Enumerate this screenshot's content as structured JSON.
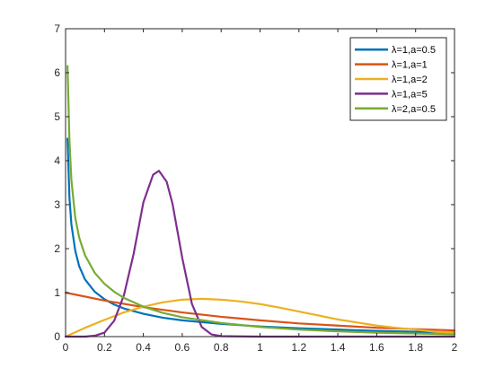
{
  "chart_data": {
    "type": "line",
    "title": "",
    "xlabel": "",
    "ylabel": "",
    "xlim": [
      0,
      2
    ],
    "ylim": [
      0,
      7
    ],
    "x_ticks": [
      "0",
      "0.2",
      "0.4",
      "0.6",
      "0.8",
      "1",
      "1.2",
      "1.4",
      "1.6",
      "1.8",
      "2"
    ],
    "x_tick_values": [
      0,
      0.2,
      0.4,
      0.6,
      0.8,
      1.0,
      1.2,
      1.4,
      1.6,
      1.8,
      2.0
    ],
    "y_ticks": [
      "0",
      "1",
      "2",
      "3",
      "4",
      "5",
      "6",
      "7"
    ],
    "y_tick_values": [
      0,
      1,
      2,
      3,
      4,
      5,
      6,
      7
    ],
    "grid": false,
    "legend_position": "top-right",
    "series": [
      {
        "name": "λ=1,a=0.5",
        "color": "#0072BD",
        "x": [
          0.01,
          0.02,
          0.03,
          0.05,
          0.07,
          0.1,
          0.15,
          0.2,
          0.25,
          0.3,
          0.4,
          0.5,
          0.6,
          0.8,
          1.0,
          1.2,
          1.4,
          1.6,
          1.8,
          2.0
        ],
        "y": [
          4.5,
          3.15,
          2.55,
          1.95,
          1.6,
          1.3,
          1.02,
          0.85,
          0.73,
          0.64,
          0.52,
          0.43,
          0.37,
          0.29,
          0.23,
          0.19,
          0.16,
          0.13,
          0.11,
          0.09
        ]
      },
      {
        "name": "λ=1,a=1",
        "color": "#D95319",
        "x": [
          0.0,
          0.2,
          0.4,
          0.6,
          0.8,
          1.0,
          1.2,
          1.4,
          1.6,
          1.8,
          2.0
        ],
        "y": [
          1.0,
          0.82,
          0.67,
          0.55,
          0.45,
          0.37,
          0.3,
          0.25,
          0.2,
          0.17,
          0.14
        ]
      },
      {
        "name": "λ=1,a=2",
        "color": "#EDB120",
        "x": [
          0.0,
          0.1,
          0.2,
          0.3,
          0.4,
          0.5,
          0.6,
          0.7,
          0.8,
          0.9,
          1.0,
          1.1,
          1.2,
          1.3,
          1.4,
          1.5,
          1.6,
          1.7,
          1.8,
          1.9,
          2.0
        ],
        "y": [
          0.0,
          0.2,
          0.38,
          0.55,
          0.68,
          0.78,
          0.84,
          0.86,
          0.84,
          0.8,
          0.74,
          0.66,
          0.57,
          0.48,
          0.39,
          0.32,
          0.25,
          0.2,
          0.16,
          0.11,
          0.08
        ]
      },
      {
        "name": "λ=1,a=5",
        "color": "#7E2F8E",
        "x": [
          0.0,
          0.1,
          0.15,
          0.2,
          0.25,
          0.3,
          0.35,
          0.4,
          0.45,
          0.48,
          0.52,
          0.55,
          0.6,
          0.65,
          0.7,
          0.75,
          0.8,
          1.0,
          1.5,
          2.0
        ],
        "y": [
          0.0,
          0.0,
          0.02,
          0.09,
          0.36,
          0.94,
          1.88,
          3.05,
          3.68,
          3.77,
          3.52,
          3.02,
          1.79,
          0.74,
          0.22,
          0.05,
          0.01,
          0.0,
          0.0,
          0.0
        ]
      },
      {
        "name": "λ=2,a=0.5",
        "color": "#77AC30",
        "x": [
          0.01,
          0.02,
          0.03,
          0.05,
          0.07,
          0.1,
          0.15,
          0.2,
          0.25,
          0.3,
          0.4,
          0.5,
          0.6,
          0.8,
          1.0,
          1.2,
          1.4,
          1.6,
          1.8,
          2.0
        ],
        "y": [
          6.15,
          4.45,
          3.55,
          2.7,
          2.25,
          1.85,
          1.45,
          1.2,
          1.02,
          0.88,
          0.68,
          0.54,
          0.44,
          0.31,
          0.22,
          0.16,
          0.12,
          0.09,
          0.07,
          0.05
        ]
      }
    ]
  }
}
